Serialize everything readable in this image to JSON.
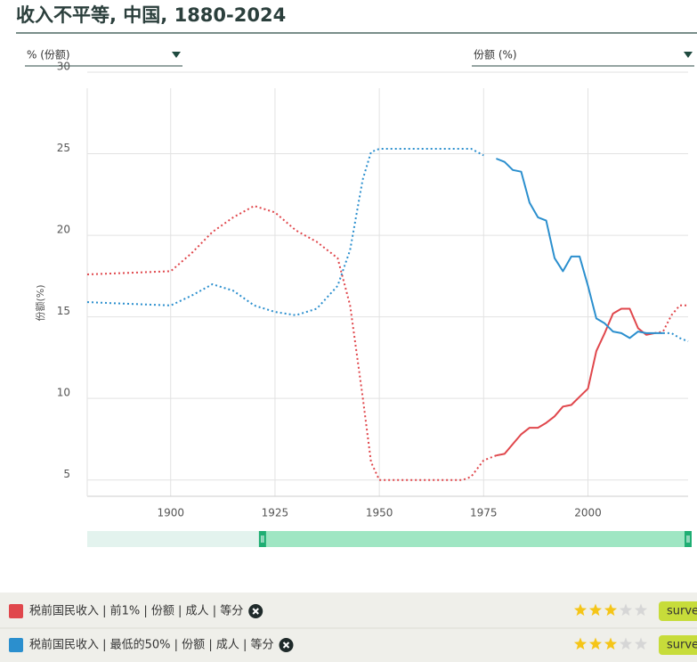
{
  "chart_data": {
    "type": "line",
    "title": "收入不平等, 中国, 1880-2024",
    "left_selector": "% (份额)",
    "right_selector": "份额 (%)",
    "y_label": "份额(%)",
    "x": [
      1880,
      1890,
      1900,
      1905,
      1910,
      1915,
      1920,
      1925,
      1930,
      1935,
      1940,
      1943,
      1946,
      1948,
      1950,
      1960,
      1970,
      1972,
      1975,
      1978,
      1980,
      1982,
      1984,
      1986,
      1988,
      1990,
      1992,
      1994,
      1996,
      1998,
      2000,
      2002,
      2004,
      2006,
      2008,
      2010,
      2012,
      2014,
      2016,
      2018,
      2020,
      2022,
      2024
    ],
    "series": [
      {
        "name": "税前国民收入 | 前1% | 份额 | 成人 | 等分",
        "color": "#e0474c",
        "solid_range": [
          1978,
          2016
        ],
        "rating": 3,
        "rating_max": 5,
        "source_button": "surve",
        "values": [
          17.6,
          17.7,
          17.8,
          18.9,
          20.2,
          21.1,
          21.8,
          21.4,
          20.3,
          19.6,
          18.6,
          15.7,
          10.1,
          6.1,
          5.0,
          5.0,
          5.0,
          5.2,
          6.2,
          6.5,
          6.6,
          7.2,
          7.8,
          8.2,
          8.2,
          8.5,
          8.9,
          9.5,
          9.6,
          10.1,
          10.6,
          12.9,
          14.0,
          15.2,
          15.5,
          15.5,
          14.3,
          13.9,
          14.0,
          14.1,
          15.1,
          15.7,
          15.7
        ]
      },
      {
        "name": "税前国民收入 | 最低的50% | 份额 | 成人 | 等分",
        "color": "#2b8fce",
        "solid_range": [
          1976,
          2018
        ],
        "rating": 3,
        "rating_max": 5,
        "source_button": "surve",
        "values": [
          15.9,
          15.8,
          15.7,
          16.3,
          17.0,
          16.6,
          15.7,
          15.3,
          15.1,
          15.5,
          16.9,
          19.1,
          23.4,
          25.1,
          25.3,
          25.3,
          25.3,
          25.3,
          24.9,
          24.7,
          24.5,
          24.0,
          23.9,
          22.0,
          21.1,
          20.9,
          18.6,
          17.8,
          18.7,
          18.7,
          16.9,
          14.9,
          14.6,
          14.1,
          14.0,
          13.7,
          14.1,
          14.0,
          14.0,
          14.0,
          14.0,
          13.7,
          13.5
        ]
      }
    ],
    "xlim": [
      1880,
      2024
    ],
    "xticks": [
      1900,
      1925,
      1950,
      1975,
      2000
    ],
    "ylim": [
      4,
      30
    ],
    "yticks": [
      5,
      10,
      15,
      20,
      25,
      30
    ],
    "grid": true,
    "selected_range": [
      1922,
      2024
    ]
  }
}
